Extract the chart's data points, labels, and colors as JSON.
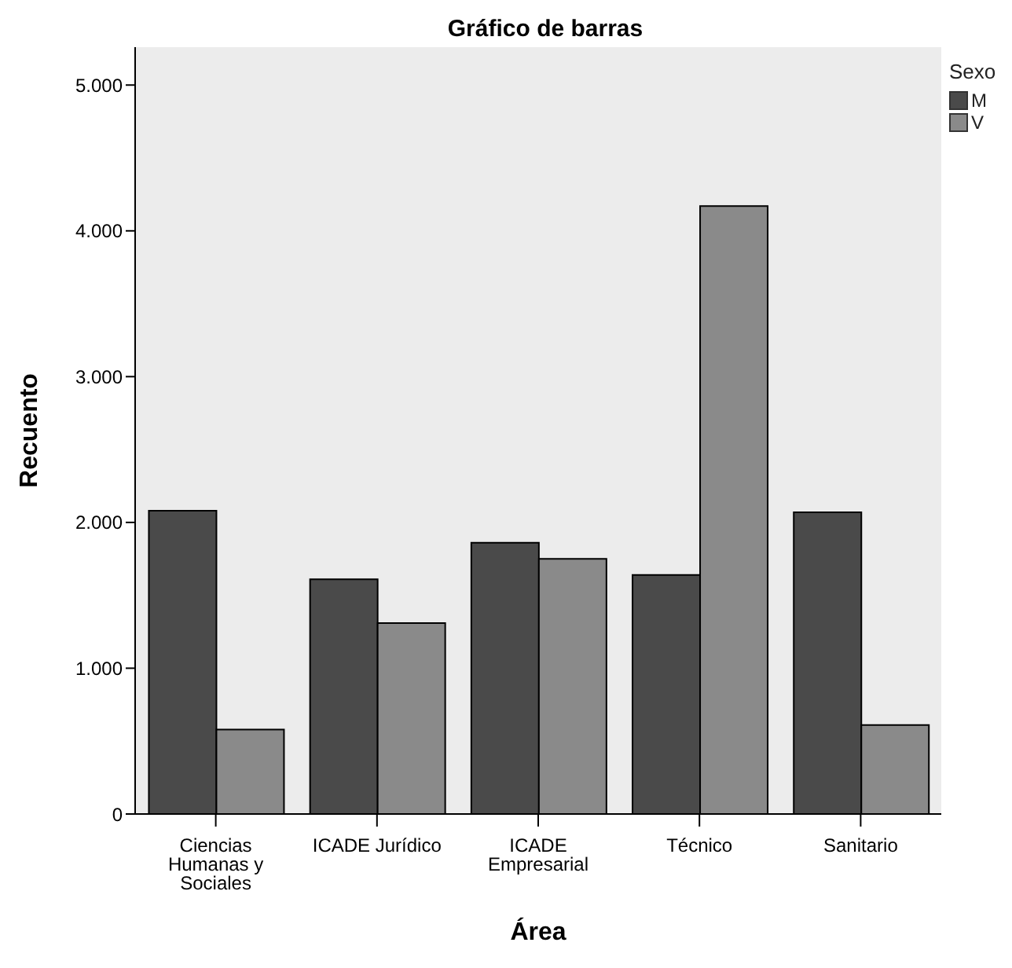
{
  "chart_data": {
    "type": "bar",
    "title": "Gráfico de barras",
    "xlabel": "Área",
    "ylabel": "Recuento",
    "legend_title": "Sexo",
    "categories": [
      "Ciencias Humanas y Sociales",
      "ICADE Jurídico",
      "ICADE Empresarial",
      "Técnico",
      "Sanitario"
    ],
    "series": [
      {
        "name": "M",
        "color": "#4a4a4a",
        "values": [
          2080,
          1610,
          1860,
          1640,
          2070
        ]
      },
      {
        "name": "V",
        "color": "#8a8a8a",
        "values": [
          580,
          1310,
          1750,
          4170,
          610
        ]
      }
    ],
    "ylim": [
      0,
      5260
    ],
    "yticks": [
      {
        "value": 0,
        "label": "0"
      },
      {
        "value": 1000,
        "label": "1.000"
      },
      {
        "value": 2000,
        "label": "2.000"
      },
      {
        "value": 3000,
        "label": "3.000"
      },
      {
        "value": 4000,
        "label": "4.000"
      },
      {
        "value": 5000,
        "label": "5.000"
      }
    ],
    "grid": false,
    "legend": "top right"
  }
}
